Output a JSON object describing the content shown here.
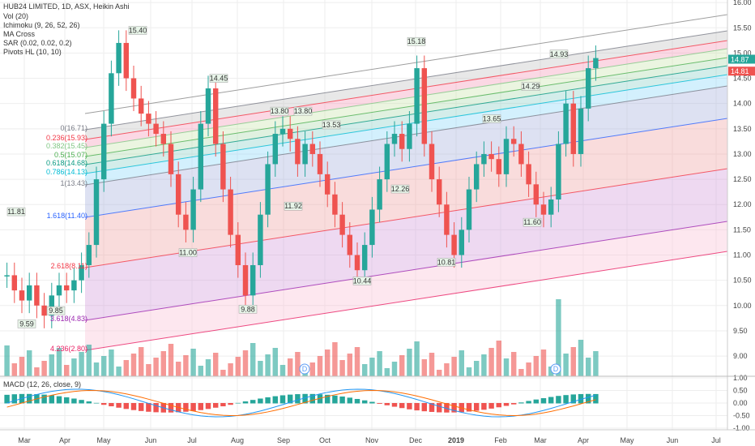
{
  "header": {
    "title": "HUB24 LIMITED, 1D, ASX, Heikin Ashi",
    "indicators": [
      "Vol (20)",
      "Ichimoku (9, 26, 52, 26)",
      "MA Cross",
      "SAR (0.02, 0.02, 0.2)",
      "Pivots HL (10, 10)"
    ]
  },
  "macd_label": "MACD (12, 26, close, 9)",
  "colors": {
    "up": "#26a69a",
    "down": "#ef5350",
    "grid": "#eeeeee",
    "axis_text": "#444444",
    "macd_line": "#2196f3",
    "signal_line": "#ff6d00"
  },
  "chart_data": [
    {
      "type": "candlestick",
      "title": "HUB24 LIMITED, 1D, ASX, Heikin Ashi",
      "x_ticks": [
        "Mar",
        "Apr",
        "May",
        "Jun",
        "Jul",
        "Aug",
        "Sep",
        "Oct",
        "Nov",
        "Dec",
        "2019",
        "Feb",
        "Mar",
        "Apr",
        "May",
        "Jun",
        "Jul"
      ],
      "y_ticks": [
        "16.00",
        "15.50",
        "15.00",
        "14.50",
        "14.00",
        "13.50",
        "13.00",
        "12.50",
        "12.00",
        "11.50",
        "11.00",
        "10.50",
        "10.00",
        "9.50",
        "9.00"
      ],
      "ylim": [
        8.6,
        16.05
      ],
      "last_price": 14.87,
      "last_price_2": 14.81,
      "close_series": [
        10.6,
        10.3,
        10.1,
        10.4,
        10.0,
        9.8,
        10.2,
        10.4,
        10.3,
        10.5,
        10.8,
        11.2,
        12.5,
        13.6,
        14.6,
        15.2,
        14.5,
        14.1,
        13.8,
        13.6,
        13.4,
        13.2,
        12.6,
        11.8,
        11.5,
        12.3,
        13.6,
        14.3,
        13.2,
        12.3,
        11.4,
        10.8,
        10.2,
        10.8,
        11.8,
        12.8,
        13.4,
        13.5,
        13.3,
        12.8,
        13.2,
        13.0,
        12.6,
        12.2,
        11.8,
        11.4,
        11.0,
        10.7,
        11.2,
        11.9,
        12.5,
        13.2,
        13.4,
        13.1,
        13.6,
        14.7,
        13.2,
        12.5,
        12.0,
        11.4,
        11.0,
        11.5,
        12.3,
        12.8,
        13.0,
        12.9,
        12.6,
        13.3,
        13.2,
        12.8,
        12.4,
        12.0,
        11.8,
        12.1,
        13.2,
        14.0,
        13.0,
        13.9,
        14.7,
        14.9
      ]
    },
    {
      "type": "bar",
      "title": "Vol (20)",
      "note": "volume histogram"
    },
    {
      "type": "line",
      "title": "MACD (12, 26, close, 9)",
      "y_ticks": [
        "1.00",
        "0.50",
        "0.00",
        "-0.50",
        "-1.00"
      ],
      "ylim": [
        -1.0,
        1.0
      ]
    }
  ],
  "pivot_labels": [
    "15.40",
    "14.45",
    "13.80",
    "13.80",
    "13.53",
    "15.18",
    "14.93",
    "14.29",
    "13.65",
    "11.81",
    "9.59",
    "9.85",
    "11.00",
    "9.88",
    "11.92",
    "10.44",
    "12.26",
    "10.81",
    "11.60"
  ],
  "fib_levels": [
    {
      "label": "0(16.71)",
      "color": "#787b86"
    },
    {
      "label": "0.236(15.93)",
      "color": "#f23645"
    },
    {
      "label": "0.382(15.45)",
      "color": "#81c784"
    },
    {
      "label": "0.5(15.07)",
      "color": "#4caf50"
    },
    {
      "label": "0.618(14.68)",
      "color": "#089981"
    },
    {
      "label": "0.786(14.13)",
      "color": "#00bcd4"
    },
    {
      "label": "1(13.43)",
      "color": "#787b86"
    },
    {
      "label": "1.618(11.40)",
      "color": "#2962ff"
    },
    {
      "label": "2.618(8.11)",
      "color": "#f23645"
    },
    {
      "label": "3.618(4.83)",
      "color": "#9c27b0"
    },
    {
      "label": "4.236(2.80)",
      "color": "#e91e63"
    }
  ],
  "event_marker": "D"
}
